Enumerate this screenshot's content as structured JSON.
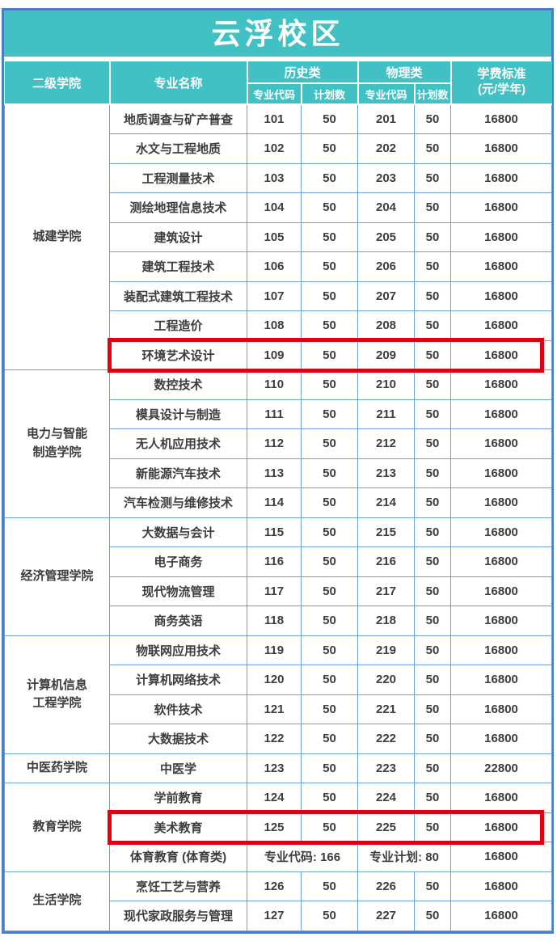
{
  "title": "云浮校区",
  "colors": {
    "header_teal": "#41c1c3",
    "inner_border_blue": "#6b9fd8",
    "outer_border_blue": "#4a80c2",
    "highlight_red": "#e2000e",
    "header_text": "#ffffff",
    "body_text": "#3d3d3d"
  },
  "header": {
    "college": "二级学院",
    "major": "专业名称",
    "history": "历史类",
    "physics": "物理类",
    "code": "专业代码",
    "plan": "计划数",
    "tuition_line1": "学费标准",
    "tuition_line2": "(元/学年)"
  },
  "groups": [
    {
      "college": "城建学院",
      "rows": [
        {
          "major": "地质调查与矿产普查",
          "h_code": "101",
          "h_plan": "50",
          "p_code": "201",
          "p_plan": "50",
          "tuition": "16800"
        },
        {
          "major": "水文与工程地质",
          "h_code": "102",
          "h_plan": "50",
          "p_code": "202",
          "p_plan": "50",
          "tuition": "16800"
        },
        {
          "major": "工程测量技术",
          "h_code": "103",
          "h_plan": "50",
          "p_code": "203",
          "p_plan": "50",
          "tuition": "16800"
        },
        {
          "major": "测绘地理信息技术",
          "h_code": "104",
          "h_plan": "50",
          "p_code": "204",
          "p_plan": "50",
          "tuition": "16800"
        },
        {
          "major": "建筑设计",
          "h_code": "105",
          "h_plan": "50",
          "p_code": "205",
          "p_plan": "50",
          "tuition": "16800"
        },
        {
          "major": "建筑工程技术",
          "h_code": "106",
          "h_plan": "50",
          "p_code": "206",
          "p_plan": "50",
          "tuition": "16800"
        },
        {
          "major": "装配式建筑工程技术",
          "h_code": "107",
          "h_plan": "50",
          "p_code": "207",
          "p_plan": "50",
          "tuition": "16800"
        },
        {
          "major": "工程造价",
          "h_code": "108",
          "h_plan": "50",
          "p_code": "208",
          "p_plan": "50",
          "tuition": "16800"
        },
        {
          "major": "环境艺术设计",
          "h_code": "109",
          "h_plan": "50",
          "p_code": "209",
          "p_plan": "50",
          "tuition": "16800",
          "highlight": true
        }
      ]
    },
    {
      "college": "电力与智能\n制造学院",
      "rows": [
        {
          "major": "数控技术",
          "h_code": "110",
          "h_plan": "50",
          "p_code": "210",
          "p_plan": "50",
          "tuition": "16800"
        },
        {
          "major": "模具设计与制造",
          "h_code": "111",
          "h_plan": "50",
          "p_code": "211",
          "p_plan": "50",
          "tuition": "16800"
        },
        {
          "major": "无人机应用技术",
          "h_code": "112",
          "h_plan": "50",
          "p_code": "212",
          "p_plan": "50",
          "tuition": "16800"
        },
        {
          "major": "新能源汽车技术",
          "h_code": "113",
          "h_plan": "50",
          "p_code": "213",
          "p_plan": "50",
          "tuition": "16800"
        },
        {
          "major": "汽车检测与维修技术",
          "h_code": "114",
          "h_plan": "50",
          "p_code": "214",
          "p_plan": "50",
          "tuition": "16800"
        }
      ]
    },
    {
      "college": "经济管理学院",
      "rows": [
        {
          "major": "大数据与会计",
          "h_code": "115",
          "h_plan": "50",
          "p_code": "215",
          "p_plan": "50",
          "tuition": "16800"
        },
        {
          "major": "电子商务",
          "h_code": "116",
          "h_plan": "50",
          "p_code": "216",
          "p_plan": "50",
          "tuition": "16800"
        },
        {
          "major": "现代物流管理",
          "h_code": "117",
          "h_plan": "50",
          "p_code": "217",
          "p_plan": "50",
          "tuition": "16800"
        },
        {
          "major": "商务英语",
          "h_code": "118",
          "h_plan": "50",
          "p_code": "218",
          "p_plan": "50",
          "tuition": "16800"
        }
      ]
    },
    {
      "college": "计算机信息\n工程学院",
      "rows": [
        {
          "major": "物联网应用技术",
          "h_code": "119",
          "h_plan": "50",
          "p_code": "219",
          "p_plan": "50",
          "tuition": "16800"
        },
        {
          "major": "计算机网络技术",
          "h_code": "120",
          "h_plan": "50",
          "p_code": "220",
          "p_plan": "50",
          "tuition": "16800"
        },
        {
          "major": "软件技术",
          "h_code": "121",
          "h_plan": "50",
          "p_code": "221",
          "p_plan": "50",
          "tuition": "16800"
        },
        {
          "major": "大数据技术",
          "h_code": "122",
          "h_plan": "50",
          "p_code": "222",
          "p_plan": "50",
          "tuition": "16800"
        }
      ]
    },
    {
      "college": "中医药学院",
      "rows": [
        {
          "major": "中医学",
          "h_code": "123",
          "h_plan": "50",
          "p_code": "223",
          "p_plan": "50",
          "tuition": "22800"
        }
      ]
    },
    {
      "college": "教育学院",
      "rows": [
        {
          "major": "学前教育",
          "h_code": "124",
          "h_plan": "50",
          "p_code": "224",
          "p_plan": "50",
          "tuition": "16800"
        },
        {
          "major": "美术教育",
          "h_code": "125",
          "h_plan": "50",
          "p_code": "225",
          "p_plan": "50",
          "tuition": "16800",
          "highlight": true
        },
        {
          "major": "体育教育 (体育类)",
          "special": true,
          "code_text": "专业代码: 166",
          "plan_text": "专业计划: 80",
          "tuition": "16800"
        }
      ]
    },
    {
      "college": "生活学院",
      "rows": [
        {
          "major": "烹饪工艺与营养",
          "h_code": "126",
          "h_plan": "50",
          "p_code": "226",
          "p_plan": "50",
          "tuition": "16800"
        },
        {
          "major": "现代家政服务与管理",
          "h_code": "127",
          "h_plan": "50",
          "p_code": "227",
          "p_plan": "50",
          "tuition": "16800"
        }
      ]
    }
  ]
}
